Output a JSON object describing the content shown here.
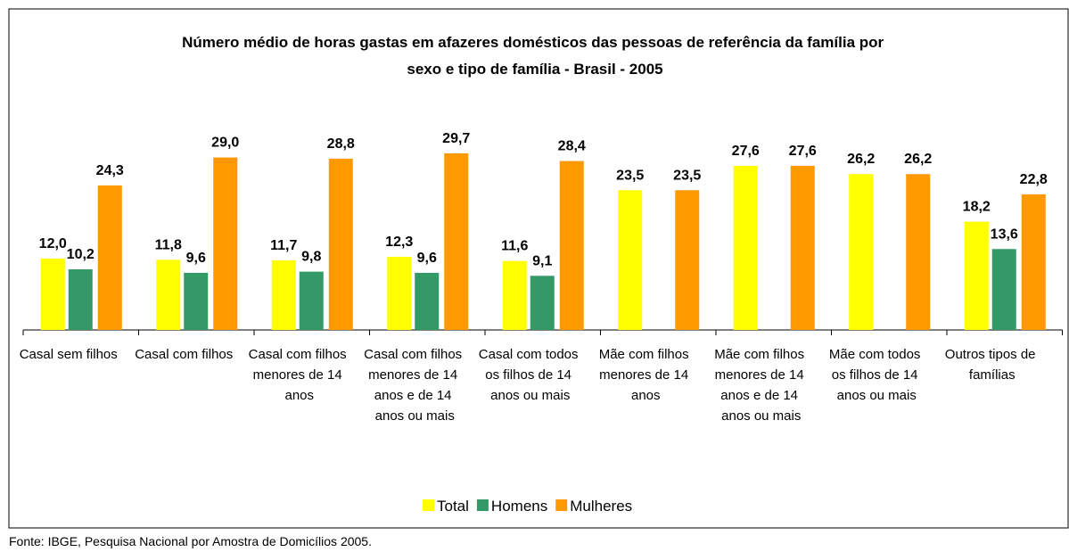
{
  "chart_data": {
    "type": "bar",
    "title": "Número médio de horas gastas em afazeres domésticos das pessoas de referência da família por sexo e tipo de família - Brasil - 2005",
    "categories": [
      "Casal sem filhos",
      "Casal com filhos",
      "Casal com filhos menores de 14 anos",
      "Casal com filhos menores de 14 anos e de 14 anos ou mais",
      "Casal com todos os filhos de 14 anos ou mais",
      "Mãe com filhos menores de 14 anos",
      "Mãe com filhos menores de 14 anos e de 14 anos ou mais",
      "Mãe com todos os filhos de 14 anos ou mais",
      "Outros tipos de famílias"
    ],
    "series": [
      {
        "name": "Total",
        "color": "#ffff00",
        "values": [
          12.0,
          11.8,
          11.7,
          12.3,
          11.6,
          23.5,
          27.6,
          26.2,
          18.2
        ],
        "value_labels": [
          "12,0",
          "11,8",
          "11,7",
          "12,3",
          "11,6",
          "23,5",
          "27,6",
          "26,2",
          "18,2"
        ]
      },
      {
        "name": "Homens",
        "color": "#339966",
        "values": [
          10.2,
          9.6,
          9.8,
          9.6,
          9.1,
          null,
          null,
          null,
          13.6
        ],
        "value_labels": [
          "10,2",
          "9,6",
          "9,8",
          "9,6",
          "9,1",
          null,
          null,
          null,
          "13,6"
        ]
      },
      {
        "name": "Mulheres",
        "color": "#ff9900",
        "values": [
          24.3,
          29.0,
          28.8,
          29.7,
          28.4,
          23.5,
          27.6,
          26.2,
          22.8
        ],
        "value_labels": [
          "24,3",
          "29,0",
          "28,8",
          "29,7",
          "28,4",
          "23,5",
          "27,6",
          "26,2",
          "22,8"
        ]
      }
    ],
    "legend": "bottom",
    "source": "Fonte: IBGE, Pesquisa Nacional por Amostra de Domicílios 2005."
  }
}
